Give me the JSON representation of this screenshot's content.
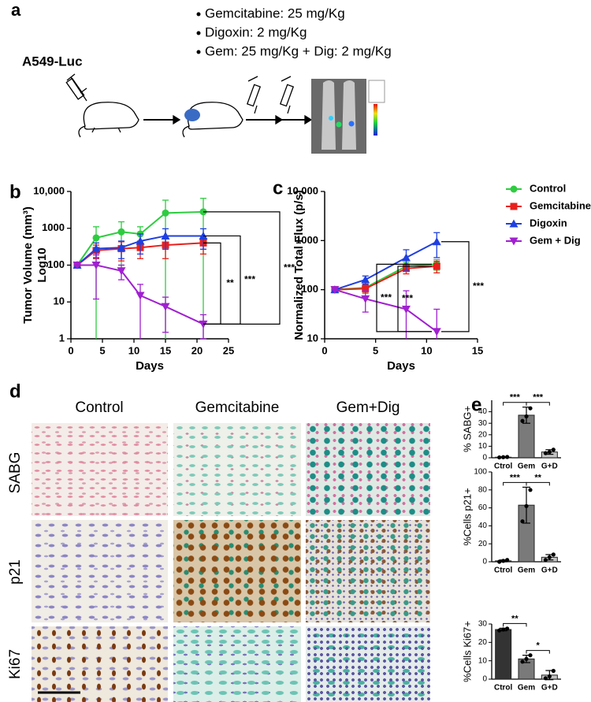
{
  "panel_a": {
    "label": "a",
    "treatments": [
      "Gemcitabine: 25 mg/Kg",
      "Digoxin: 2 mg/Kg",
      "Gem: 25 mg/Kg + Dig: 2 mg/Kg"
    ],
    "cell_line": "A549-Luc"
  },
  "panel_d": {
    "label": "d",
    "columns": [
      "Control",
      "Gemcitabine",
      "Gem+Dig"
    ],
    "rows": [
      "SABG",
      "p21",
      "Ki67"
    ]
  },
  "chart_data": [
    {
      "type": "line",
      "panel_label": "b",
      "y_label": [
        "Tumor Volume (mm³)",
        "Log10"
      ],
      "x_label": "Days",
      "log_y": true,
      "x": [
        1,
        4,
        8,
        11,
        15,
        21
      ],
      "xlim": [
        0,
        25
      ],
      "xticks": [
        0,
        5,
        10,
        15,
        20,
        25
      ],
      "ylim": [
        1,
        10000
      ],
      "yticks": [
        1,
        10,
        100,
        1000,
        {
          "value": 10000,
          "label": "10,000"
        }
      ],
      "series": [
        {
          "color": "#2ecc40",
          "marker": "circle",
          "values": [
            100,
            550,
            800,
            700,
            2600,
            2800
          ],
          "errors": [
            0,
            550,
            700,
            400,
            3200,
            3700
          ]
        },
        {
          "color": "#e8201c",
          "marker": "square",
          "values": [
            100,
            250,
            280,
            300,
            350,
            400
          ],
          "errors": [
            0,
            100,
            150,
            150,
            200,
            200
          ]
        },
        {
          "color": "#1f3fe0",
          "marker": "triangle-up",
          "values": [
            100,
            280,
            300,
            450,
            620,
            620
          ],
          "errors": [
            0,
            120,
            150,
            250,
            350,
            350
          ]
        },
        {
          "color": "#a020d0",
          "marker": "triangle-down",
          "values": [
            100,
            100,
            70,
            15,
            7.5,
            2.5
          ],
          "errors": [
            0,
            88,
            30,
            15,
            6,
            2
          ]
        }
      ],
      "annotations": [
        "**",
        "***",
        "***"
      ]
    },
    {
      "type": "line",
      "panel_label": "c",
      "y_label": "Normalized Total Flux (p/s)",
      "x_label": "Days",
      "log_y": true,
      "x": [
        1,
        4,
        8,
        11
      ],
      "xlim": [
        0,
        15
      ],
      "xticks": [
        0,
        5,
        10,
        15
      ],
      "ylim": [
        10,
        10000
      ],
      "yticks": [
        10,
        100,
        1000,
        {
          "value": 10000,
          "label": "10,000"
        }
      ],
      "legend": "right",
      "series": [
        {
          "name": "Control",
          "color": "#2ecc40",
          "marker": "circle",
          "values": [
            100,
            110,
            300,
            330
          ],
          "errors": [
            0,
            20,
            60,
            80
          ]
        },
        {
          "name": "Gemcitabine",
          "color": "#e8201c",
          "marker": "square",
          "values": [
            100,
            105,
            270,
            300
          ],
          "errors": [
            0,
            20,
            60,
            80
          ]
        },
        {
          "name": "Digoxin",
          "color": "#1f3fe0",
          "marker": "triangle-up",
          "values": [
            100,
            160,
            450,
            950
          ],
          "errors": [
            0,
            30,
            200,
            500
          ]
        },
        {
          "name": "Gem + Dig",
          "color": "#a020d0",
          "marker": "triangle-down",
          "values": [
            100,
            65,
            40,
            14
          ],
          "errors": [
            0,
            30,
            55,
            26
          ]
        }
      ],
      "annotations": [
        "***",
        "***",
        "***"
      ]
    },
    {
      "type": "bar",
      "panel_label": "e",
      "y_label": "% SABG+",
      "categories": [
        "Ctrol",
        "Gem",
        "G+D"
      ],
      "colors": [
        "#333333",
        "#7a7a7a",
        "#c4c4c4"
      ],
      "values": [
        0.5,
        37,
        5
      ],
      "errors": [
        0.3,
        7,
        2
      ],
      "points": [
        [
          0.3,
          0.5,
          0.7
        ],
        [
          32,
          36,
          43
        ],
        [
          4,
          5,
          7
        ]
      ],
      "ylim": [
        0,
        50
      ],
      "yticks": [
        0,
        10,
        20,
        30,
        40
      ],
      "annotations": [
        "***",
        "***"
      ]
    },
    {
      "type": "bar",
      "y_label": "%Cells p21+",
      "categories": [
        "Ctrol",
        "Gem",
        "G+D"
      ],
      "colors": [
        "#333333",
        "#7a7a7a",
        "#c4c4c4"
      ],
      "values": [
        1,
        63,
        5
      ],
      "errors": [
        1,
        20,
        3
      ],
      "points": [
        [
          0,
          1,
          2
        ],
        [
          45,
          62,
          80
        ],
        [
          2,
          5,
          8
        ]
      ],
      "ylim": [
        0,
        100
      ],
      "yticks": [
        0,
        20,
        40,
        60,
        80,
        100
      ],
      "annotations": [
        "***",
        "**"
      ]
    },
    {
      "type": "bar",
      "y_label": "%Cells Ki67+",
      "categories": [
        "Ctrol",
        "Gem",
        "G+D"
      ],
      "colors": [
        "#333333",
        "#7a7a7a",
        "#c4c4c4"
      ],
      "values": [
        27,
        11,
        2.2
      ],
      "errors": [
        0.7,
        2,
        2.5
      ],
      "points": [
        [
          26.5,
          27,
          27.5
        ],
        [
          9.5,
          11,
          13
        ],
        [
          0.5,
          1.5,
          4.5
        ]
      ],
      "ylim": [
        0,
        30
      ],
      "yticks": [
        0,
        10,
        20,
        30
      ],
      "annotations": [
        "**",
        "*"
      ]
    }
  ]
}
